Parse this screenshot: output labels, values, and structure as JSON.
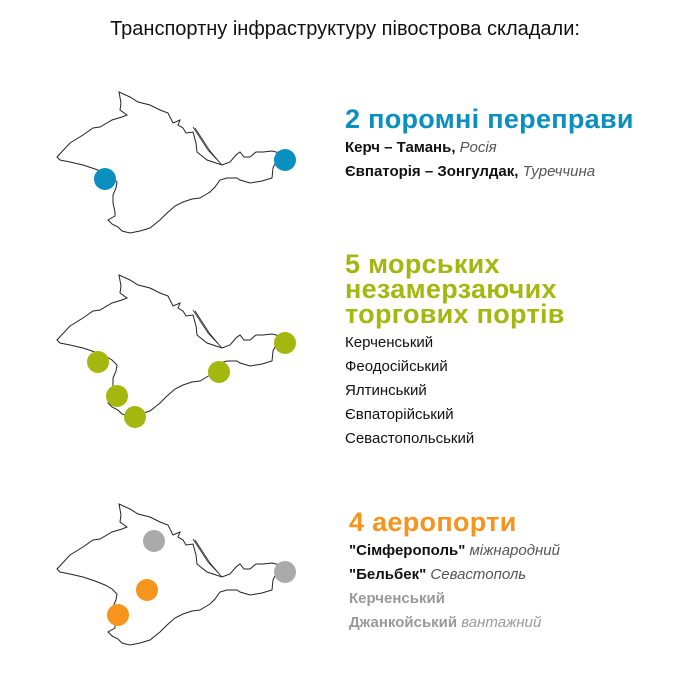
{
  "title": "Транспортну інфраструктуру півострова складали:",
  "colors": {
    "ferries": "#0a8fbf",
    "ports": "#a3b70f",
    "airports": "#f7941d",
    "inactive": "#aaaaaa",
    "outline": "#222222"
  },
  "ferries": {
    "heading": "2 поромні переправи",
    "items": [
      {
        "name": "Керч – Тамань,",
        "note": "Росія"
      },
      {
        "name": "Євпаторія – Зонгулдак,",
        "note": "Туреччина"
      }
    ]
  },
  "ports": {
    "heading": [
      "5 морських",
      "незамерзаючих",
      "торгових портів"
    ],
    "items": [
      "Керченський",
      "Феодосійський",
      "Ялтинський",
      "Євпаторійський",
      "Севастопольський"
    ]
  },
  "airports": {
    "heading": "4 аеропорти",
    "items": [
      {
        "name": "\"Сімферополь\"",
        "note": "міжнародний",
        "active": true
      },
      {
        "name": "\"Бельбек\"",
        "note": "Севастополь",
        "active": true
      },
      {
        "name": "Керченський",
        "note": "",
        "active": false
      },
      {
        "name": "Джанкойський",
        "note": "вантажний",
        "active": false
      }
    ]
  }
}
